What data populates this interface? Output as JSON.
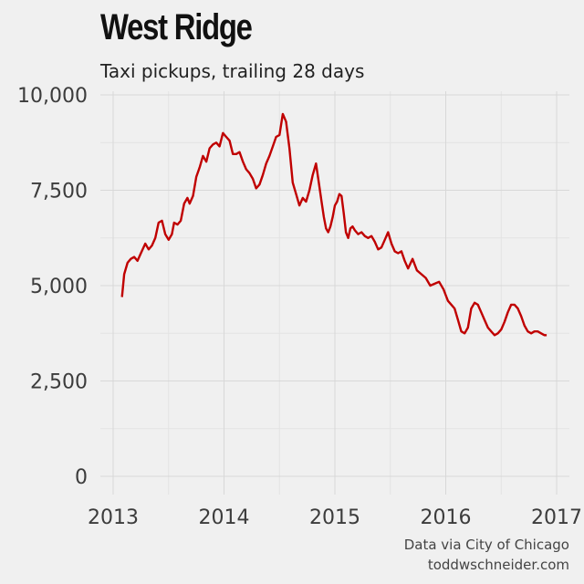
{
  "header": {
    "title": "West Ridge",
    "subtitle": "Taxi pickups, trailing 28 days"
  },
  "caption": {
    "line1": "Data via City of Chicago",
    "line2": "toddwschneider.com"
  },
  "colors": {
    "background": "#f0f0f0",
    "line": "#c00000",
    "grid": "#d8d8d8"
  },
  "chart_data": {
    "type": "line",
    "title": "West Ridge",
    "subtitle": "Taxi pickups, trailing 28 days",
    "xlabel": "",
    "ylabel": "",
    "xlim": [
      2013.0,
      2017.0
    ],
    "ylim": [
      0,
      10000
    ],
    "xticks": [
      2013,
      2014,
      2015,
      2016,
      2017
    ],
    "xtick_labels": [
      "2013",
      "2014",
      "2015",
      "2016",
      "2017"
    ],
    "yticks": [
      0,
      2500,
      5000,
      7500,
      10000
    ],
    "ytick_labels": [
      "0",
      "2,500",
      "5,000",
      "7,500",
      "10,000"
    ],
    "grid": true,
    "series": [
      {
        "color": "#c00000",
        "x": [
          2013.08,
          2013.1,
          2013.13,
          2013.16,
          2013.19,
          2013.22,
          2013.25,
          2013.29,
          2013.32,
          2013.35,
          2013.38,
          2013.41,
          2013.44,
          2013.47,
          2013.5,
          2013.53,
          2013.55,
          2013.58,
          2013.61,
          2013.64,
          2013.67,
          2013.69,
          2013.72,
          2013.75,
          2013.78,
          2013.81,
          2013.84,
          2013.87,
          2013.9,
          2013.93,
          2013.96,
          2013.99,
          2014.02,
          2014.05,
          2014.08,
          2014.11,
          2014.14,
          2014.17,
          2014.2,
          2014.23,
          2014.26,
          2014.29,
          2014.32,
          2014.35,
          2014.38,
          2014.41,
          2014.44,
          2014.47,
          2014.5,
          2014.53,
          2014.56,
          2014.59,
          2014.62,
          2014.65,
          2014.68,
          2014.71,
          2014.74,
          2014.77,
          2014.8,
          2014.83,
          2014.86,
          2014.88,
          2014.9,
          2014.92,
          2014.94,
          2014.96,
          2014.98,
          2015.0,
          2015.02,
          2015.04,
          2015.06,
          2015.08,
          2015.1,
          2015.12,
          2015.14,
          2015.16,
          2015.18,
          2015.21,
          2015.24,
          2015.27,
          2015.3,
          2015.33,
          2015.36,
          2015.39,
          2015.42,
          2015.45,
          2015.48,
          2015.51,
          2015.54,
          2015.57,
          2015.6,
          2015.63,
          2015.66,
          2015.7,
          2015.74,
          2015.78,
          2015.82,
          2015.86,
          2015.9,
          2015.94,
          2015.98,
          2016.0,
          2016.02,
          2016.05,
          2016.08,
          2016.11,
          2016.14,
          2016.17,
          2016.2,
          2016.23,
          2016.26,
          2016.29,
          2016.32,
          2016.35,
          2016.38,
          2016.41,
          2016.44,
          2016.47,
          2016.5,
          2016.53,
          2016.56,
          2016.59,
          2016.62,
          2016.65,
          2016.68,
          2016.71,
          2016.74,
          2016.77,
          2016.8,
          2016.83,
          2016.86,
          2016.89,
          2016.91
        ],
        "values": [
          4700,
          5300,
          5600,
          5700,
          5750,
          5650,
          5850,
          6100,
          5950,
          6050,
          6250,
          6650,
          6700,
          6350,
          6200,
          6350,
          6650,
          6600,
          6700,
          7150,
          7300,
          7150,
          7350,
          7850,
          8100,
          8400,
          8250,
          8600,
          8700,
          8750,
          8650,
          9000,
          8900,
          8800,
          8450,
          8450,
          8500,
          8250,
          8050,
          7950,
          7800,
          7550,
          7650,
          7900,
          8200,
          8400,
          8650,
          8900,
          8950,
          9500,
          9300,
          8600,
          7700,
          7400,
          7100,
          7300,
          7200,
          7500,
          7900,
          8200,
          7600,
          7200,
          6800,
          6500,
          6400,
          6550,
          6800,
          7100,
          7200,
          7400,
          7350,
          6900,
          6400,
          6250,
          6500,
          6550,
          6450,
          6350,
          6400,
          6300,
          6250,
          6300,
          6150,
          5950,
          6000,
          6200,
          6400,
          6100,
          5900,
          5850,
          5900,
          5650,
          5450,
          5700,
          5400,
          5300,
          5200,
          5000,
          5050,
          5100,
          4900,
          4750,
          4600,
          4500,
          4400,
          4100,
          3800,
          3750,
          3900,
          4400,
          4550,
          4500,
          4300,
          4100,
          3900,
          3800,
          3700,
          3750,
          3850,
          4050,
          4300,
          4500,
          4500,
          4400,
          4200,
          3950,
          3800,
          3750,
          3800,
          3800,
          3750,
          3700,
          3700
        ]
      }
    ]
  }
}
